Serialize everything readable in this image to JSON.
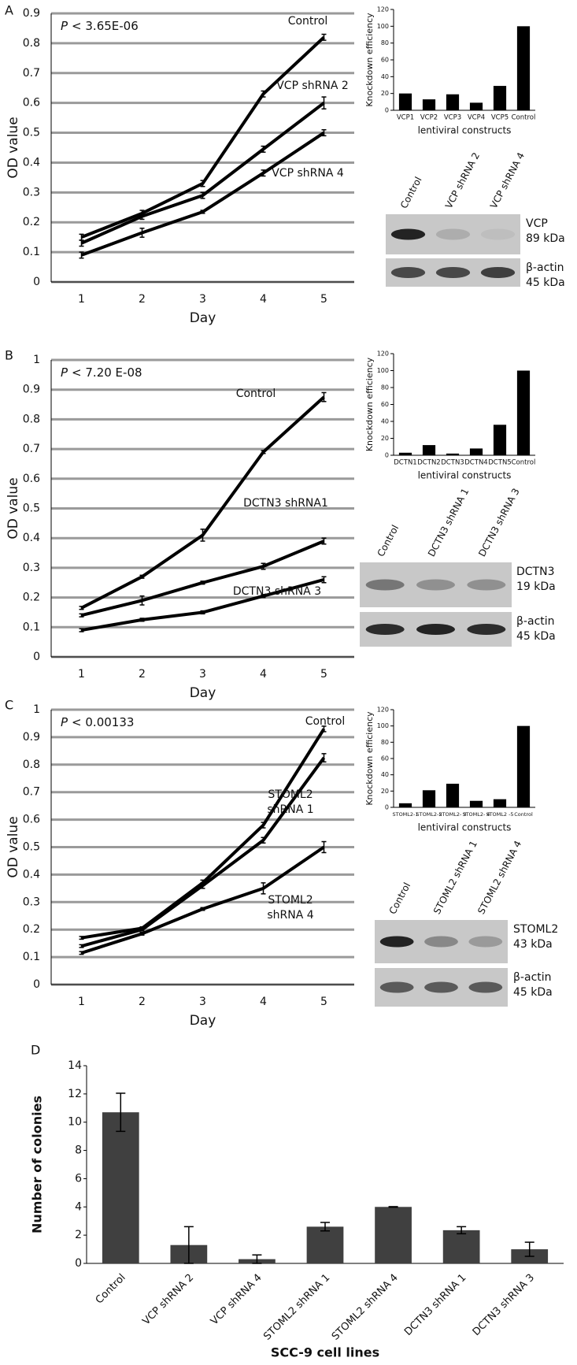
{
  "chart_data": [
    {
      "type": "line",
      "panel": "A",
      "p_value": {
        "symbol": "P",
        "text": "< 3.65E-06"
      },
      "x_label": "Day",
      "y_label": "OD value",
      "categories": [
        "1",
        "2",
        "3",
        "4",
        "5"
      ],
      "ylim": [
        0,
        0.9
      ],
      "yticks": [
        0,
        0.1,
        0.2,
        0.3,
        0.4,
        0.5,
        0.6,
        0.7,
        0.8,
        0.9
      ],
      "grid": true,
      "series": [
        {
          "name": "Control",
          "color": "#000000",
          "values": [
            0.15,
            0.23,
            0.33,
            0.63,
            0.82
          ],
          "errors": [
            0.01,
            0.01,
            0.01,
            0.01,
            0.01
          ]
        },
        {
          "name": "VCP shRNA 2",
          "color": "#000000",
          "values": [
            0.13,
            0.22,
            0.29,
            0.445,
            0.6
          ],
          "errors": [
            0.01,
            0.01,
            0.01,
            0.01,
            0.02
          ]
        },
        {
          "name": "VCP shRNA 4",
          "color": "#000000",
          "values": [
            0.09,
            0.165,
            0.235,
            0.365,
            0.5
          ],
          "errors": [
            0.01,
            0.015,
            0.005,
            0.01,
            0.01
          ]
        }
      ]
    },
    {
      "type": "bar",
      "x_label": "lentiviral constructs",
      "y_label": "Knockdown efficiency",
      "color": "#000000",
      "categories": [
        "VCP1",
        "VCP2",
        "VCP3",
        "VCP4",
        "VCP5",
        "Control"
      ],
      "values": [
        20,
        13,
        19,
        9,
        29,
        100
      ],
      "ylim": [
        0,
        120
      ],
      "yticks": [
        0,
        20,
        40,
        60,
        80,
        100,
        120
      ]
    },
    {
      "type": "line",
      "panel": "B",
      "p_value": {
        "symbol": "P",
        "text": "< 7.20 E-08"
      },
      "x_label": "Day",
      "y_label": "OD value",
      "categories": [
        "1",
        "2",
        "3",
        "4",
        "5"
      ],
      "ylim": [
        0,
        1
      ],
      "yticks": [
        0,
        0.1,
        0.2,
        0.3,
        0.4,
        0.5,
        0.6,
        0.7,
        0.8,
        0.9,
        1
      ],
      "grid": true,
      "series": [
        {
          "name": "Control",
          "color": "#000000",
          "values": [
            0.165,
            0.27,
            0.41,
            0.69,
            0.875
          ],
          "errors": [
            0.005,
            0.005,
            0.02,
            0.005,
            0.015
          ]
        },
        {
          "name": "DCTN3 shRNA1",
          "color": "#000000",
          "values": [
            0.14,
            0.19,
            0.25,
            0.305,
            0.39
          ],
          "errors": [
            0.005,
            0.015,
            0.005,
            0.01,
            0.01
          ]
        },
        {
          "name": "DCTN3 shRNA 3",
          "color": "#000000",
          "values": [
            0.09,
            0.125,
            0.15,
            0.205,
            0.26
          ],
          "errors": [
            0.005,
            0.005,
            0.005,
            0.005,
            0.01
          ]
        }
      ]
    },
    {
      "type": "bar",
      "x_label": "lentiviral constructs",
      "y_label": "Knockdown efficiency",
      "color": "#000000",
      "categories": [
        "DCTN1",
        "DCTN2",
        "DCTN3",
        "DCTN4",
        "DCTN5",
        "Control"
      ],
      "values": [
        3,
        12,
        2,
        8,
        36,
        100
      ],
      "ylim": [
        0,
        120
      ],
      "yticks": [
        0,
        20,
        40,
        60,
        80,
        100,
        120
      ]
    },
    {
      "type": "line",
      "panel": "C",
      "p_value": {
        "symbol": "P",
        "text": "< 0.00133"
      },
      "x_label": "Day",
      "y_label": "OD value",
      "categories": [
        "1",
        "2",
        "3",
        "4",
        "5"
      ],
      "ylim": [
        0,
        1
      ],
      "yticks": [
        0,
        0.1,
        0.2,
        0.3,
        0.4,
        0.5,
        0.6,
        0.7,
        0.8,
        0.9,
        1
      ],
      "grid": true,
      "series": [
        {
          "name": "Control",
          "color": "#000000",
          "values": [
            0.17,
            0.205,
            0.37,
            0.58,
            0.93
          ],
          "errors": [
            0.005,
            0.005,
            0.01,
            0.01,
            0.01
          ]
        },
        {
          "name": "STOML2 shRNA 1",
          "color": "#000000",
          "values": [
            0.14,
            0.2,
            0.36,
            0.525,
            0.825
          ],
          "errors": [
            0.005,
            0.005,
            0.01,
            0.01,
            0.015
          ]
        },
        {
          "name": "STOML2 shRNA 4",
          "color": "#000000",
          "values": [
            0.115,
            0.185,
            0.275,
            0.35,
            0.5
          ],
          "errors": [
            0.005,
            0.005,
            0.005,
            0.02,
            0.02
          ]
        }
      ]
    },
    {
      "type": "bar",
      "x_label": "lentiviral constructs",
      "y_label": "Knockdown efficiency",
      "color": "#000000",
      "categories": [
        "STOML2-1",
        "STOML2-2",
        "STOML2- 3",
        "STOML2- 4",
        "STOML2 -5",
        "Control"
      ],
      "values": [
        5,
        21,
        29,
        8,
        10,
        100
      ],
      "ylim": [
        0,
        120
      ],
      "yticks": [
        0,
        20,
        40,
        60,
        80,
        100,
        120
      ]
    },
    {
      "type": "errorbar",
      "panel": "D",
      "x_label": "SCC-9 cell lines",
      "y_label": "Number of colonies",
      "color": "#404040",
      "categories": [
        "Control",
        "VCP shRNA 2",
        "VCP shRNA 4",
        "STOML2 shRNA 1",
        "STOML2 shRNA 4",
        "DCTN3 shRNA 1",
        "DCTN3 shRNA 3"
      ],
      "values": [
        10.7,
        1.3,
        0.3,
        2.6,
        4.0,
        2.35,
        1.0
      ],
      "errors": [
        1.35,
        1.3,
        0.3,
        0.3,
        0.02,
        0.25,
        0.5
      ],
      "ylim": [
        0,
        14
      ],
      "yticks": [
        0,
        2,
        4,
        6,
        8,
        10,
        12,
        14
      ]
    }
  ],
  "blots": [
    {
      "lanes": [
        "Control",
        "VCP shRNA 2",
        "VCP shRNA 4"
      ],
      "rows": [
        {
          "protein": "VCP",
          "size": "89 kDa"
        },
        {
          "protein": "β-actin",
          "size": "45 kDa"
        }
      ]
    },
    {
      "lanes": [
        "Control",
        "DCTN3 shRNA 1",
        "DCTN3 shRNA 3"
      ],
      "rows": [
        {
          "protein": "DCTN3",
          "size": "19 kDa"
        },
        {
          "protein": "β-actin",
          "size": "45 kDa"
        }
      ]
    },
    {
      "lanes": [
        "Control",
        "STOML2 shRNA 1",
        "STOML2 shRNA 4"
      ],
      "rows": [
        {
          "protein": "STOML2",
          "size": "43 kDa"
        },
        {
          "protein": "β-actin",
          "size": "45 kDa"
        }
      ]
    }
  ]
}
